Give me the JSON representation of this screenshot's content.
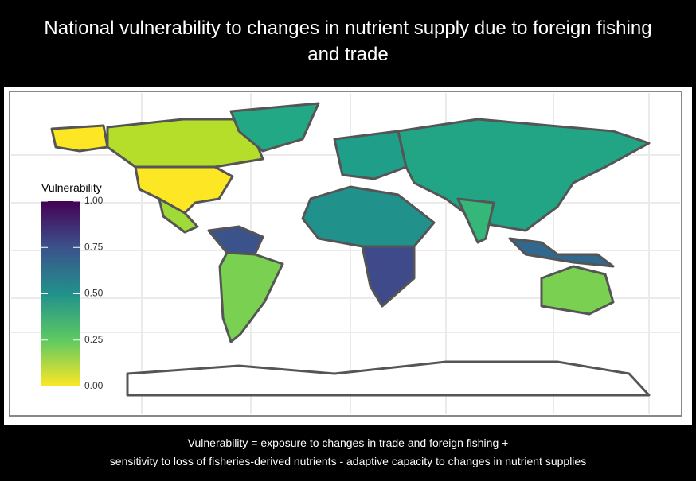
{
  "title": [
    "National vulnerability to changes in nutrient supply due to foreign fishing",
    "and trade"
  ],
  "legend": {
    "title": "Vulnerability",
    "ticks": [
      {
        "value": 0,
        "label": "0.00"
      },
      {
        "value": 0.25,
        "label": "0.25"
      },
      {
        "value": 0.5,
        "label": "0.50"
      },
      {
        "value": 0.75,
        "label": "0.75"
      },
      {
        "value": 1,
        "label": "1.00"
      }
    ],
    "colors": [
      "#fde725",
      "#5ec962",
      "#21918c",
      "#3b528b",
      "#440154"
    ]
  },
  "caption": [
    "Vulnerability = exposure to changes in trade and foreign fishing +",
    "sensitivity to loss of fisheries-derived nutrients - adaptive capacity to changes in nutrient supplies"
  ]
}
